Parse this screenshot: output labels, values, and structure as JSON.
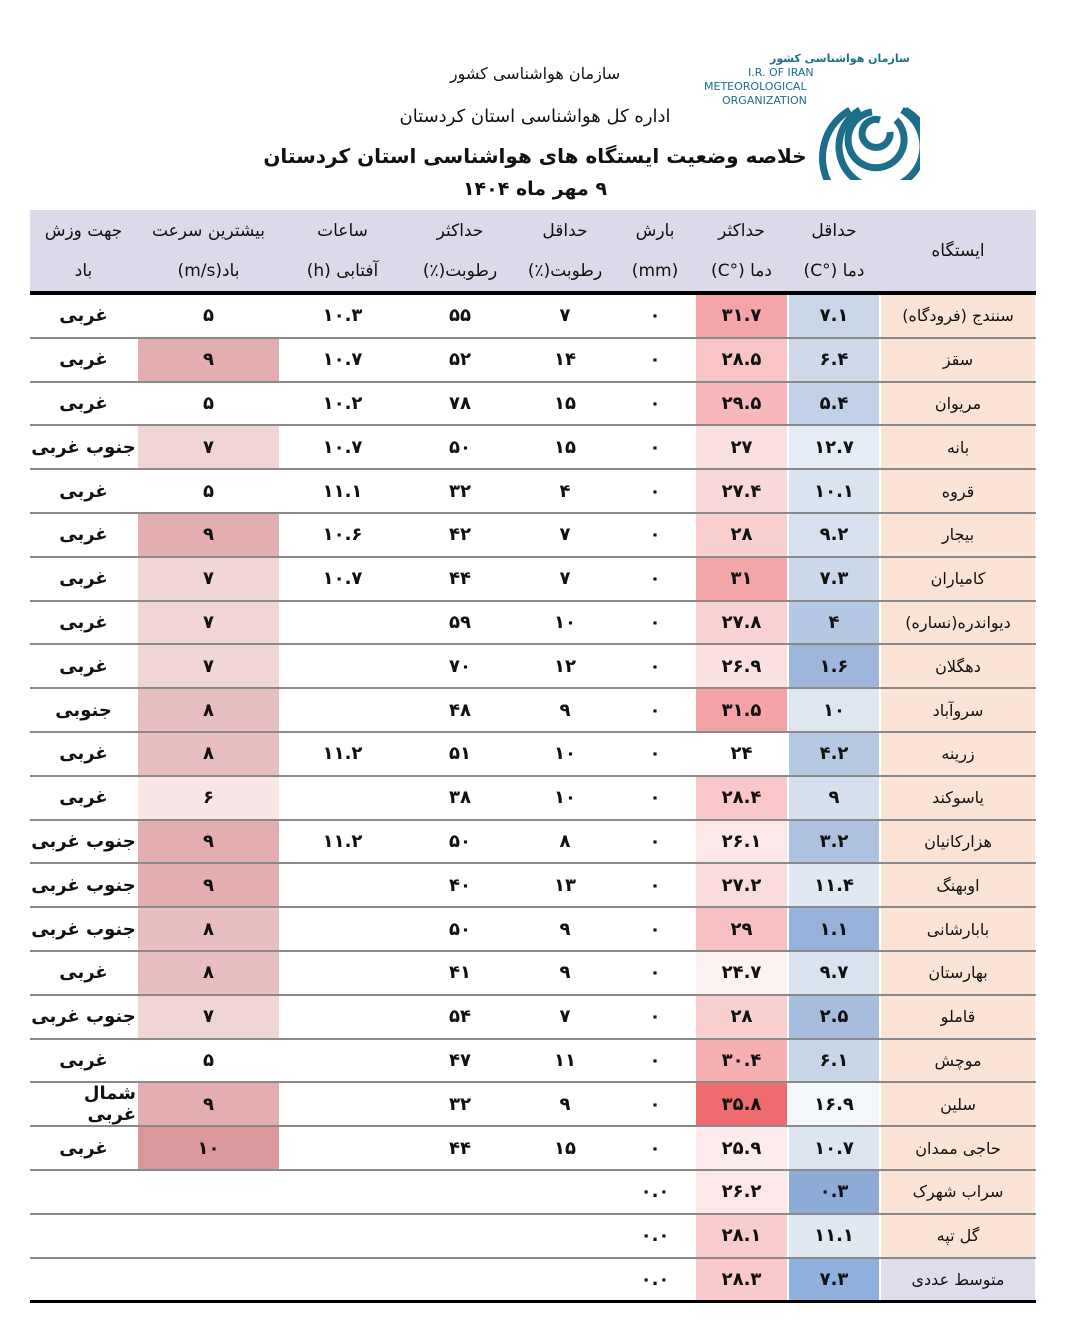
{
  "header": {
    "org": "سازمان هواشناسی کشور",
    "office": "اداره کل هواشناسی استان کردستان",
    "title": "خلاصه وضعیت ایستگاه های هواشناسی استان کردستان",
    "date": "۹  مهر  ماه ۱۴۰۴"
  },
  "logo": {
    "name": "سازمان هواشناسی کشور",
    "lines": [
      "I.R. OF IRAN",
      "METEOROLOGICAL",
      "ORGANIZATION"
    ]
  },
  "table": {
    "columns": [
      [
        "ایستگاه"
      ],
      [
        "حداقل",
        "دما (°C)"
      ],
      [
        "حداکثر",
        "دما (°C)"
      ],
      [
        "بارش",
        "(mm)"
      ],
      [
        "حداقل",
        "رطوبت(٪)"
      ],
      [
        "حداکثر",
        "رطوبت(٪)"
      ],
      [
        "ساعات",
        "آفتابی (h)"
      ],
      [
        "بیشترین سرعت",
        "باد(m/s)"
      ],
      [
        "جهت وزش",
        "باد"
      ]
    ],
    "rows": [
      [
        "سنندج (فرودگاه)",
        "۷.۱",
        "۳۱.۷",
        "۰",
        "۷",
        "۵۵",
        "۱۰.۳",
        "۵",
        "غربی"
      ],
      [
        "سقز",
        "۶.۴",
        "۲۸.۵",
        "۰",
        "۱۴",
        "۵۲",
        "۱۰.۷",
        "۹",
        "غربی"
      ],
      [
        "مریوان",
        "۵.۴",
        "۲۹.۵",
        "۰",
        "۱۵",
        "۷۸",
        "۱۰.۲",
        "۵",
        "غربی"
      ],
      [
        "بانه",
        "۱۲.۷",
        "۲۷",
        "۰",
        "۱۵",
        "۵۰",
        "۱۰.۷",
        "۷",
        "جنوب غربی"
      ],
      [
        "قروه",
        "۱۰.۱",
        "۲۷.۴",
        "۰",
        "۴",
        "۳۲",
        "۱۱.۱",
        "۵",
        "غربی"
      ],
      [
        "بیجار",
        "۹.۲",
        "۲۸",
        "۰",
        "۷",
        "۴۲",
        "۱۰.۶",
        "۹",
        "غربی"
      ],
      [
        "کامیاران",
        "۷.۳",
        "۳۱",
        "۰",
        "۷",
        "۴۴",
        "۱۰.۷",
        "۷",
        "غربی"
      ],
      [
        "دیواندره(نساره)",
        "۴",
        "۲۷.۸",
        "۰",
        "۱۰",
        "۵۹",
        null,
        "۷",
        "غربی"
      ],
      [
        "دهگلان",
        "۱.۶",
        "۲۶.۹",
        "۰",
        "۱۲",
        "۷۰",
        null,
        "۷",
        "غربی"
      ],
      [
        "سروآباد",
        "۱۰",
        "۳۱.۵",
        "۰",
        "۹",
        "۴۸",
        null,
        "۸",
        "جنوبی"
      ],
      [
        "زرینه",
        "۴.۲",
        "۲۴",
        "۰",
        "۱۰",
        "۵۱",
        "۱۱.۲",
        "۸",
        "غربی"
      ],
      [
        "یاسوکند",
        "۹",
        "۲۸.۴",
        "۰",
        "۱۰",
        "۳۸",
        null,
        "۶",
        "غربی"
      ],
      [
        "هزارکانیان",
        "۳.۲",
        "۲۶.۱",
        "۰",
        "۸",
        "۵۰",
        "۱۱.۲",
        "۹",
        "جنوب غربی"
      ],
      [
        "اوبهنگ",
        "۱۱.۴",
        "۲۷.۲",
        "۰",
        "۱۳",
        "۴۰",
        null,
        "۹",
        "جنوب غربی"
      ],
      [
        "بابارشانی",
        "۱.۱",
        "۲۹",
        "۰",
        "۹",
        "۵۰",
        null,
        "۸",
        "جنوب غربی"
      ],
      [
        "بهارستان",
        "۹.۷",
        "۲۴.۷",
        "۰",
        "۹",
        "۴۱",
        null,
        "۸",
        "غربی"
      ],
      [
        "قاملو",
        "۲.۵",
        "۲۸",
        "۰",
        "۷",
        "۵۴",
        null,
        "۷",
        "جنوب غربی"
      ],
      [
        "موچش",
        "۶.۱",
        "۳۰.۴",
        "۰",
        "۱۱",
        "۴۷",
        null,
        "۵",
        "غربی"
      ],
      [
        "سلین",
        "۱۶.۹",
        "۳۵.۸",
        "۰",
        "۹",
        "۳۲",
        null,
        "۹",
        "شمال غربی"
      ],
      [
        "حاجی ممدان",
        "۱۰.۷",
        "۲۵.۹",
        "۰",
        "۱۵",
        "۴۴",
        null,
        "۱۰",
        "غربی"
      ],
      [
        "سراب شهرک",
        "۰.۳",
        "۲۶.۲",
        "۰.۰",
        null,
        null,
        null,
        null,
        null
      ],
      [
        "گل تپه",
        "۱۱.۱",
        "۲۸.۱",
        "۰.۰",
        null,
        null,
        null,
        null,
        null
      ],
      [
        "متوسط عددی",
        "۷.۳",
        "۲۸.۳",
        "۰.۰",
        null,
        null,
        null,
        null,
        null
      ]
    ],
    "cell_colors": [
      [
        "#fbe4d6",
        "#c9d6ea",
        "#f4a5a8",
        null,
        null,
        null,
        null,
        null,
        null
      ],
      [
        "#fbe4d6",
        "#cdd9eb",
        "#f8c4c6",
        null,
        null,
        null,
        null,
        "#e3aeb0",
        null
      ],
      [
        "#fbe4d6",
        "#c1d1e8",
        "#f6b8ba",
        null,
        null,
        null,
        null,
        null,
        null
      ],
      [
        "#fbe4d6",
        "#e7edf6",
        "#fbe0e1",
        null,
        null,
        null,
        null,
        "#f1d5d6",
        null
      ],
      [
        "#fbe4d6",
        "#dae3f0",
        "#fad8d9",
        null,
        null,
        null,
        null,
        null,
        null
      ],
      [
        "#fbe4d6",
        "#d7e1ef",
        "#f9cfd0",
        null,
        null,
        null,
        null,
        "#e3aeb0",
        null
      ],
      [
        "#fbe4d6",
        "#cbd7ea",
        "#f3a6a8",
        null,
        null,
        null,
        null,
        "#f1d5d6",
        null
      ],
      [
        "#fbe4d6",
        "#b4c7e3",
        "#f9d2d3",
        null,
        null,
        null,
        null,
        "#f1d5d6",
        null
      ],
      [
        "#fbe4d6",
        "#9db6da",
        "#fbe1e2",
        null,
        null,
        null,
        null,
        "#f1d5d6",
        null
      ],
      [
        "#fbe4d6",
        "#dde6f1",
        "#f3a3a5",
        null,
        null,
        null,
        null,
        "#e8bfc0",
        null
      ],
      [
        "#fbe4d6",
        "#b6c9e3",
        null,
        null,
        null,
        null,
        null,
        "#e8bfc0",
        null
      ],
      [
        "#fbe4d6",
        "#d5dfee",
        "#f8c8ca",
        null,
        null,
        null,
        null,
        "#f8e6e6",
        null
      ],
      [
        "#fbe4d6",
        "#adc2e0",
        "#fde8e9",
        null,
        null,
        null,
        null,
        "#e3aeb0",
        null
      ],
      [
        "#fbe4d6",
        "#e0e8f3",
        "#fadcdd",
        null,
        null,
        null,
        null,
        "#e3aeb0",
        null
      ],
      [
        "#fbe4d6",
        "#97b2d8",
        "#f7c0c2",
        null,
        null,
        null,
        null,
        "#e8bfc0",
        null
      ],
      [
        "#fbe4d6",
        "#d9e3f0",
        "#fdf2f2",
        null,
        null,
        null,
        null,
        "#e8bfc0",
        null
      ],
      [
        "#fbe4d6",
        "#a6bdde",
        "#f9cfd0",
        null,
        null,
        null,
        null,
        "#f1d5d6",
        null
      ],
      [
        "#fbe4d6",
        "#c7d5e9",
        "#f5b0b2",
        null,
        null,
        null,
        null,
        null,
        null
      ],
      [
        "#fbe4d6",
        "#f3f6fb",
        "#ee6b6e",
        null,
        null,
        null,
        null,
        "#e3aeb0",
        null
      ],
      [
        "#fbe4d6",
        "#dde5f1",
        "#fdeced",
        null,
        null,
        null,
        null,
        "#d9999b",
        null
      ],
      [
        "#fbe4d6",
        "#8eabd5",
        "#fde7e8",
        null,
        null,
        null,
        null,
        null,
        null
      ],
      [
        "#fbe4d6",
        "#e0e8f2",
        "#f9cdce",
        null,
        null,
        null,
        null,
        null,
        null
      ],
      [
        "#e0dcec",
        "#8fb0dd",
        "#f8cacb",
        null,
        null,
        null,
        null,
        null,
        null
      ]
    ]
  }
}
